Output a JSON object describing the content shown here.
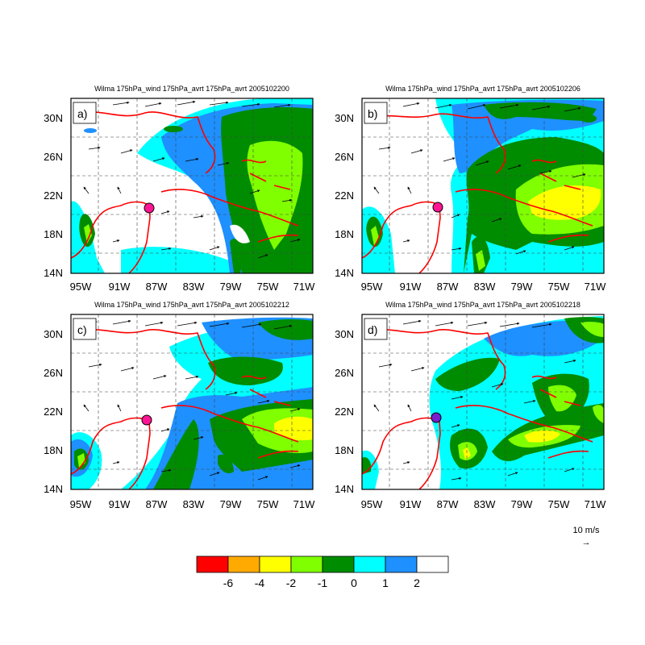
{
  "figure": {
    "panels": [
      {
        "id": "a",
        "label": "a)",
        "title": "Wilma 175hPa_wind 175hPa_avrt 175hPa_avrt 2005102200"
      },
      {
        "id": "b",
        "label": "b)",
        "title": "Wilma 175hPa_wind 175hPa_avrt 175hPa_avrt 2005102206"
      },
      {
        "id": "c",
        "label": "c)",
        "title": "Wilma 175hPa_wind 175hPa_avrt 175hPa_avrt 2005102212"
      },
      {
        "id": "d",
        "label": "d)",
        "title": "Wilma 175hPa_wind 175hPa_avrt 175hPa_avrt 2005102218"
      }
    ],
    "lon_ticks": [
      "95W",
      "91W",
      "87W",
      "83W",
      "79W",
      "75W",
      "71W"
    ],
    "lat_ticks": [
      "14N",
      "18N",
      "22N",
      "26N",
      "30N"
    ],
    "reference_vector": {
      "label": "10 m/s",
      "arrow": "→"
    },
    "colorbar": {
      "colors": [
        "#ff0000",
        "#ffaa00",
        "#ffff00",
        "#7fff00",
        "#008c00",
        "#00ffff",
        "#1e90ff",
        "#ffffff"
      ],
      "labels": [
        "-6",
        "-4",
        "-2",
        "-1",
        "0",
        "1",
        "2"
      ]
    },
    "colors": {
      "coastline": "#ff0000",
      "storm_marker_fill": "#ff1493",
      "storm_marker_last": "#7a1fd0",
      "contour": "#000000"
    }
  }
}
